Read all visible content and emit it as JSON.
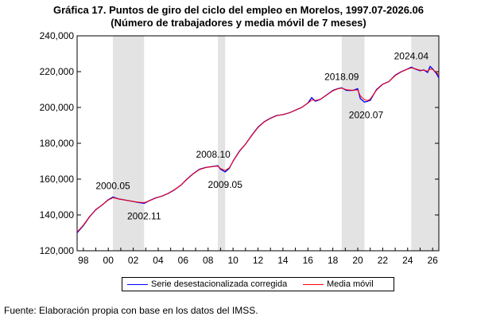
{
  "chart_data": {
    "type": "line",
    "title": "Gráfica 17. Puntos de giro del ciclo del empleo en Morelos, 1997.07-2026.06",
    "subtitle": "(Número de trabajadores y media móvil de 7 meses)",
    "xlabel": "",
    "ylabel": "",
    "xlim": [
      1997.5,
      2026.5
    ],
    "ylim": [
      120000,
      240000
    ],
    "x_ticks": [
      "98",
      "00",
      "02",
      "04",
      "06",
      "08",
      "10",
      "12",
      "14",
      "16",
      "18",
      "20",
      "22",
      "24",
      "26"
    ],
    "y_ticks": [
      "120,000",
      "140,000",
      "160,000",
      "180,000",
      "200,000",
      "220,000",
      "240,000"
    ],
    "grid": false,
    "legend_position": "bottom",
    "shaded_periods": [
      {
        "start": 2000.37,
        "end": 2002.87
      },
      {
        "start": 2008.79,
        "end": 2009.37
      },
      {
        "start": 2018.71,
        "end": 2020.54
      },
      {
        "start": 2024.29,
        "end": 2026.5
      }
    ],
    "annotations": [
      {
        "label": "2000.05",
        "x": 2000.37,
        "y": 150000
      },
      {
        "label": "2002.11",
        "x": 2002.87,
        "y": 146500
      },
      {
        "label": "2008.10",
        "x": 2008.79,
        "y": 167500
      },
      {
        "label": "2009.05",
        "x": 2009.37,
        "y": 164000
      },
      {
        "label": "2018.09",
        "x": 2018.71,
        "y": 211000
      },
      {
        "label": "2020.07",
        "x": 2020.54,
        "y": 203000
      },
      {
        "label": "2024.04",
        "x": 2024.29,
        "y": 222500
      }
    ],
    "series": [
      {
        "name": "Serie desestacionalizada corregida",
        "color": "#0000ff",
        "x": [
          1997.5,
          1998.0,
          1998.5,
          1999.0,
          1999.5,
          2000.0,
          2000.37,
          2000.8,
          2001.2,
          2001.6,
          2002.0,
          2002.4,
          2002.87,
          2003.3,
          2003.8,
          2004.3,
          2004.8,
          2005.3,
          2005.8,
          2006.3,
          2006.8,
          2007.3,
          2007.8,
          2008.3,
          2008.79,
          2009.0,
          2009.37,
          2009.7,
          2010.0,
          2010.5,
          2011.0,
          2011.5,
          2012.0,
          2012.5,
          2013.0,
          2013.5,
          2014.0,
          2014.5,
          2015.0,
          2015.5,
          2016.0,
          2016.3,
          2016.6,
          2017.0,
          2017.5,
          2018.0,
          2018.4,
          2018.71,
          2019.1,
          2019.6,
          2020.0,
          2020.2,
          2020.54,
          2020.8,
          2021.0,
          2021.5,
          2022.0,
          2022.5,
          2023.0,
          2023.5,
          2024.0,
          2024.29,
          2024.6,
          2025.0,
          2025.3,
          2025.6,
          2025.8,
          2026.0,
          2026.3,
          2026.5
        ],
        "values": [
          130000,
          134000,
          139000,
          143000,
          145500,
          148500,
          150000,
          149000,
          148500,
          148000,
          147500,
          147000,
          146500,
          148000,
          149500,
          150500,
          152000,
          154000,
          156500,
          160000,
          163000,
          165500,
          166500,
          167000,
          167500,
          165500,
          164000,
          166000,
          170000,
          175500,
          179500,
          184500,
          189000,
          192000,
          194000,
          195500,
          196000,
          197000,
          198500,
          200000,
          202500,
          205500,
          203500,
          204500,
          207000,
          209500,
          210500,
          211000,
          209500,
          209500,
          210500,
          205000,
          203000,
          203500,
          204000,
          210000,
          213000,
          214500,
          218000,
          220000,
          221500,
          222500,
          221500,
          220500,
          221000,
          219500,
          223000,
          221500,
          219000,
          216500
        ]
      },
      {
        "name": "Media móvil",
        "color": "#ff0000",
        "x": [
          1997.5,
          1998.0,
          1998.5,
          1999.0,
          1999.5,
          2000.0,
          2000.37,
          2000.8,
          2001.2,
          2001.6,
          2002.0,
          2002.4,
          2002.87,
          2003.3,
          2003.8,
          2004.3,
          2004.8,
          2005.3,
          2005.8,
          2006.3,
          2006.8,
          2007.3,
          2007.8,
          2008.3,
          2008.79,
          2009.0,
          2009.37,
          2009.7,
          2010.0,
          2010.5,
          2011.0,
          2011.5,
          2012.0,
          2012.5,
          2013.0,
          2013.5,
          2014.0,
          2014.5,
          2015.0,
          2015.5,
          2016.0,
          2016.3,
          2016.6,
          2017.0,
          2017.5,
          2018.0,
          2018.4,
          2018.71,
          2019.1,
          2019.6,
          2020.0,
          2020.2,
          2020.54,
          2020.8,
          2021.0,
          2021.5,
          2022.0,
          2022.5,
          2023.0,
          2023.5,
          2024.0,
          2024.29,
          2024.6,
          2025.0,
          2025.3,
          2025.6,
          2025.8,
          2026.0,
          2026.3,
          2026.5
        ],
        "values": [
          130500,
          134300,
          139200,
          142800,
          145600,
          148300,
          149600,
          149000,
          148500,
          148000,
          147500,
          147100,
          146900,
          147900,
          149400,
          150500,
          152000,
          154100,
          156600,
          159800,
          162900,
          165300,
          166400,
          167000,
          167200,
          165900,
          164800,
          166300,
          169900,
          175300,
          179600,
          184300,
          188800,
          191900,
          193900,
          195400,
          196100,
          197000,
          198500,
          200000,
          202400,
          204200,
          203900,
          204600,
          206900,
          209300,
          210400,
          210800,
          209900,
          209600,
          209800,
          206500,
          204300,
          203800,
          204700,
          209700,
          212900,
          214500,
          217800,
          219900,
          221400,
          222100,
          221600,
          220800,
          220800,
          220300,
          221400,
          221300,
          219600,
          218000
        ]
      }
    ]
  },
  "footer": {
    "source": "Fuente: Elaboración propia con base en los datos del IMSS."
  }
}
